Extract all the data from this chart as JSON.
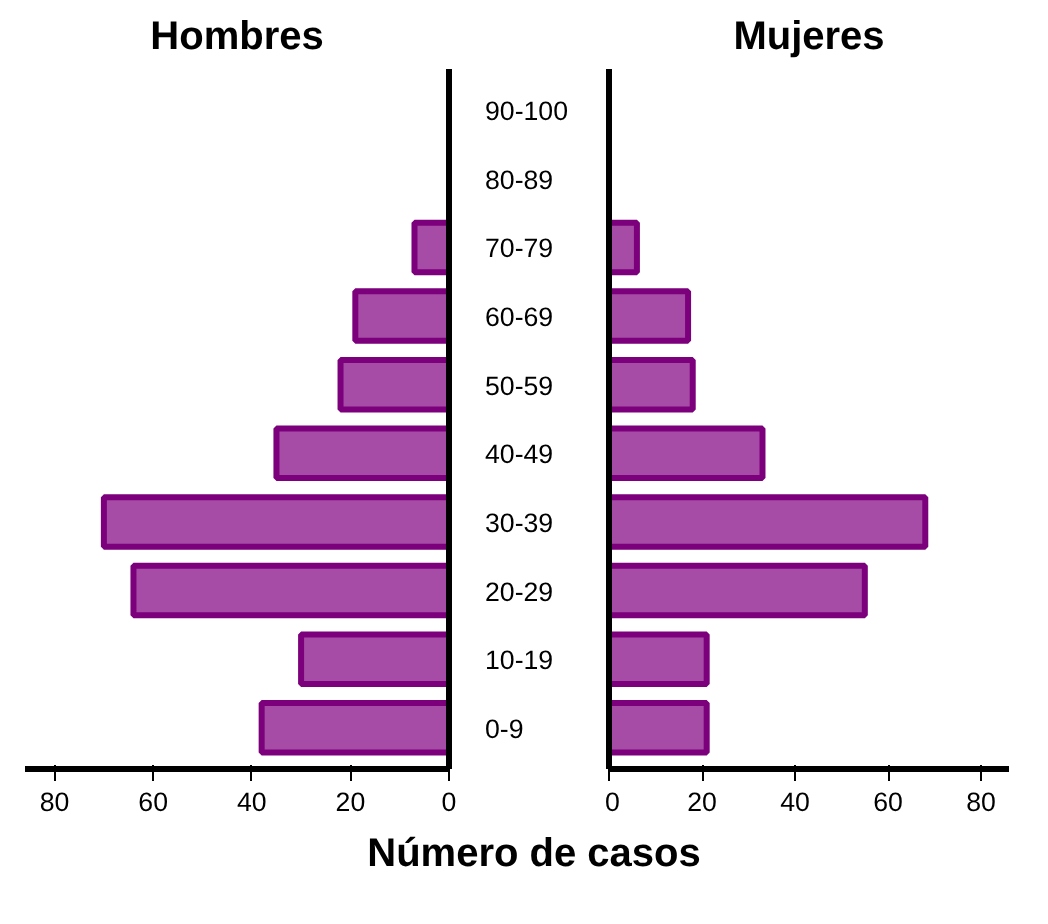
{
  "chart_data": [
    {
      "type": "bar",
      "orientation": "horizontal",
      "title": "Hombres",
      "categories": [
        "90-100",
        "80-89",
        "70-79",
        "60-69",
        "50-59",
        "40-49",
        "30-39",
        "20-29",
        "10-19",
        "0-9"
      ],
      "values": [
        null,
        null,
        7,
        19,
        22,
        35,
        70,
        64,
        30,
        38
      ],
      "color": "#a64ca6",
      "xlim": [
        86,
        0
      ],
      "xticks": [
        80,
        60,
        40,
        20,
        0
      ],
      "grid": false,
      "xlabel": "Número de casos"
    },
    {
      "type": "bar",
      "orientation": "horizontal",
      "title": "Mujeres",
      "categories": [
        null,
        null,
        null,
        null,
        null,
        null,
        null,
        null,
        null,
        null
      ],
      "tick_labels": "x",
      "values": [
        null,
        null,
        6,
        17,
        18,
        33,
        68,
        55,
        21,
        21
      ],
      "color": "#a64ca6",
      "xlim": [
        0,
        86
      ],
      "xticks": [
        0,
        20,
        40,
        60,
        80
      ],
      "grid": false
    }
  ]
}
